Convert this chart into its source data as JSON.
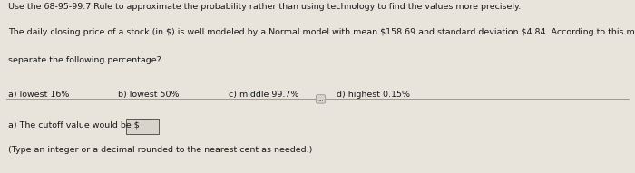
{
  "line1": "Use the 68-95-99.7 Rule to approximate the probability rather than using technology to find the values more precisely.",
  "line2": "The daily closing price of a stock (in $) is well modeled by a Normal model with mean $158.69 and standard deviation $4.84. According to this model, what cutoff value(s) of price would",
  "line3": "separate the following percentage?",
  "options_a": "a) lowest 16%",
  "options_b": "b) lowest 50%",
  "options_c": "c) middle 99.7%",
  "options_d": "d) highest 0.15%",
  "answer_line": "a) The cutoff value would be $",
  "answer_note": "(Type an integer or a decimal rounded to the nearest cent as needed.)",
  "bg_color_top": "#e8e4dc",
  "bg_color_bottom": "#d8d4cc",
  "text_color": "#1a1a1a",
  "font_size": 6.8,
  "divider_color": "#aaaaaa",
  "ellipsis_text": "..."
}
